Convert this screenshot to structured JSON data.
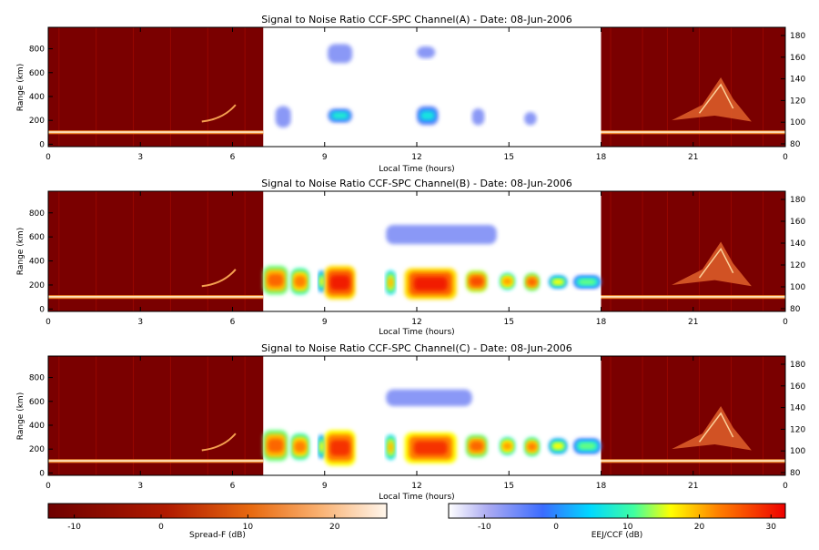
{
  "chart_data": {
    "type": "heatmap",
    "panels": [
      {
        "title": "Signal to Noise Ratio CCF-SPC Channel(A) - Date: 08-Jun-2006",
        "xlabel": "Local Time (hours)",
        "ylabel": "Range (km)",
        "x_ticks": [
          "0",
          "3",
          "6",
          "9",
          "12",
          "15",
          "18",
          "21",
          "0"
        ],
        "y_ticks_left": [
          "0",
          "200",
          "400",
          "600",
          "800"
        ],
        "y_ticks_right": [
          "80",
          "100",
          "120",
          "140",
          "160",
          "180"
        ],
        "night_spans_hours": [
          [
            0,
            7
          ],
          [
            18,
            24
          ]
        ],
        "day_span_hours": [
          7,
          18
        ],
        "layer_range_km": 100,
        "blobs": [
          {
            "t": [
              7.4,
              7.9
            ],
            "r": [
              140,
              320
            ],
            "v": 2
          },
          {
            "t": [
              9.1,
              9.9
            ],
            "r": [
              180,
              300
            ],
            "v": 6
          },
          {
            "t": [
              9.1,
              9.9
            ],
            "r": [
              680,
              840
            ],
            "v": 2
          },
          {
            "t": [
              12.0,
              12.7
            ],
            "r": [
              160,
              320
            ],
            "v": 5
          },
          {
            "t": [
              12.0,
              12.6
            ],
            "r": [
              720,
              820
            ],
            "v": 1
          },
          {
            "t": [
              13.8,
              14.2
            ],
            "r": [
              160,
              300
            ],
            "v": 1
          },
          {
            "t": [
              15.5,
              15.9
            ],
            "r": [
              160,
              270
            ],
            "v": 1
          }
        ]
      },
      {
        "title": "Signal to Noise Ratio CCF-SPC Channel(B) - Date: 08-Jun-2006",
        "xlabel": "Local Time (hours)",
        "ylabel": "Range (km)",
        "x_ticks": [
          "0",
          "3",
          "6",
          "9",
          "12",
          "15",
          "18",
          "21",
          "0"
        ],
        "y_ticks_left": [
          "0",
          "200",
          "400",
          "600",
          "800"
        ],
        "y_ticks_right": [
          "80",
          "100",
          "120",
          "140",
          "160",
          "180"
        ],
        "night_spans_hours": [
          [
            0,
            7
          ],
          [
            18,
            24
          ]
        ],
        "day_span_hours": [
          7,
          18
        ],
        "layer_range_km": 100,
        "blobs": [
          {
            "t": [
              7.0,
              7.8
            ],
            "r": [
              120,
              360
            ],
            "v": 24
          },
          {
            "t": [
              7.9,
              8.5
            ],
            "r": [
              120,
              340
            ],
            "v": 22
          },
          {
            "t": [
              8.8,
              9.0
            ],
            "r": [
              140,
              320
            ],
            "v": 14
          },
          {
            "t": [
              9.0,
              10.0
            ],
            "r": [
              80,
              360
            ],
            "v": 30
          },
          {
            "t": [
              11.0,
              11.3
            ],
            "r": [
              120,
              320
            ],
            "v": 18
          },
          {
            "t": [
              11.6,
              13.3
            ],
            "r": [
              80,
              340
            ],
            "v": 30
          },
          {
            "t": [
              13.6,
              14.3
            ],
            "r": [
              140,
              320
            ],
            "v": 26
          },
          {
            "t": [
              14.7,
              15.2
            ],
            "r": [
              160,
              300
            ],
            "v": 20
          },
          {
            "t": [
              15.5,
              16.0
            ],
            "r": [
              150,
              300
            ],
            "v": 24
          },
          {
            "t": [
              16.3,
              16.9
            ],
            "r": [
              170,
              280
            ],
            "v": 14
          },
          {
            "t": [
              17.1,
              18.0
            ],
            "r": [
              170,
              280
            ],
            "v": 10
          },
          {
            "t": [
              11.0,
              14.6
            ],
            "r": [
              540,
              700
            ],
            "v": 3
          }
        ]
      },
      {
        "title": "Signal to Noise Ratio CCF-SPC Channel(C) - Date: 08-Jun-2006",
        "xlabel": "Local Time (hours)",
        "ylabel": "Range (km)",
        "x_ticks": [
          "0",
          "3",
          "6",
          "9",
          "12",
          "15",
          "18",
          "21",
          "0"
        ],
        "y_ticks_left": [
          "0",
          "200",
          "400",
          "600",
          "800"
        ],
        "y_ticks_right": [
          "80",
          "100",
          "120",
          "140",
          "160",
          "180"
        ],
        "night_spans_hours": [
          [
            0,
            7
          ],
          [
            18,
            24
          ]
        ],
        "day_span_hours": [
          7,
          18
        ],
        "layer_range_km": 100,
        "blobs": [
          {
            "t": [
              7.0,
              7.8
            ],
            "r": [
              100,
              360
            ],
            "v": 24
          },
          {
            "t": [
              7.9,
              8.5
            ],
            "r": [
              110,
              330
            ],
            "v": 22
          },
          {
            "t": [
              8.8,
              9.0
            ],
            "r": [
              120,
              320
            ],
            "v": 14
          },
          {
            "t": [
              9.0,
              10.0
            ],
            "r": [
              60,
              360
            ],
            "v": 28
          },
          {
            "t": [
              11.0,
              11.3
            ],
            "r": [
              110,
              320
            ],
            "v": 18
          },
          {
            "t": [
              11.6,
              13.3
            ],
            "r": [
              80,
              340
            ],
            "v": 28
          },
          {
            "t": [
              13.6,
              14.3
            ],
            "r": [
              130,
              320
            ],
            "v": 24
          },
          {
            "t": [
              14.7,
              15.2
            ],
            "r": [
              150,
              300
            ],
            "v": 20
          },
          {
            "t": [
              15.5,
              16.0
            ],
            "r": [
              140,
              300
            ],
            "v": 22
          },
          {
            "t": [
              16.3,
              16.9
            ],
            "r": [
              160,
              290
            ],
            "v": 14
          },
          {
            "t": [
              17.1,
              18.0
            ],
            "r": [
              160,
              290
            ],
            "v": 10
          },
          {
            "t": [
              11.0,
              13.8
            ],
            "r": [
              560,
              700
            ],
            "v": 3
          }
        ]
      }
    ],
    "colorbars": [
      {
        "label": "Spread-F (dB)",
        "ticks": [
          "-10",
          "0",
          "10",
          "20"
        ],
        "range": [
          -13,
          26
        ],
        "tick_values": [
          -10,
          0,
          10,
          20
        ]
      },
      {
        "label": "EEJ/CCF (dB)",
        "ticks": [
          "-10",
          "0",
          "10",
          "20",
          "30"
        ],
        "range": [
          -15,
          32
        ],
        "tick_values": [
          -10,
          0,
          10,
          20,
          30
        ]
      }
    ]
  }
}
